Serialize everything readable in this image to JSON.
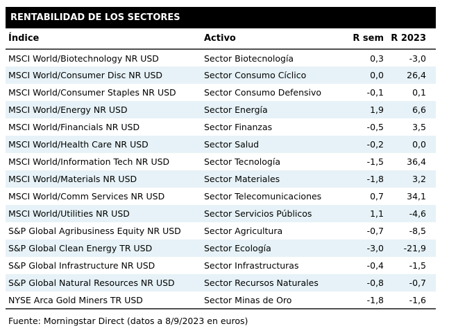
{
  "title": "RENTABILIDAD DE LOS SECTORES",
  "table": {
    "columns": [
      "Índice",
      "Activo",
      "R sem",
      "R 2023"
    ],
    "rows": [
      {
        "indice": "MSCI World/Biotechnology NR USD",
        "activo": "Sector Biotecnología",
        "r_sem": "0,3",
        "r_2023": "-3,0"
      },
      {
        "indice": "MSCI World/Consumer Disc NR USD",
        "activo": "Sector Consumo Cíclico",
        "r_sem": "0,0",
        "r_2023": "26,4"
      },
      {
        "indice": "MSCI World/Consumer Staples NR USD",
        "activo": "Sector Consumo Defensivo",
        "r_sem": "-0,1",
        "r_2023": "0,1"
      },
      {
        "indice": "MSCI World/Energy NR USD",
        "activo": "Sector Energía",
        "r_sem": "1,9",
        "r_2023": "6,6"
      },
      {
        "indice": "MSCI World/Financials NR USD",
        "activo": "Sector Finanzas",
        "r_sem": "-0,5",
        "r_2023": "3,5"
      },
      {
        "indice": "MSCI World/Health Care NR USD",
        "activo": "Sector Salud",
        "r_sem": "-0,2",
        "r_2023": "0,0"
      },
      {
        "indice": "MSCI World/Information Tech NR USD",
        "activo": "Sector Tecnología",
        "r_sem": "-1,5",
        "r_2023": "36,4"
      },
      {
        "indice": "MSCI World/Materials NR USD",
        "activo": "Sector Materiales",
        "r_sem": "-1,8",
        "r_2023": "3,2"
      },
      {
        "indice": "MSCI World/Comm Services NR USD",
        "activo": "Sector Telecomunicaciones",
        "r_sem": "0,7",
        "r_2023": "34,1"
      },
      {
        "indice": "MSCI World/Utilities NR USD",
        "activo": "Sector Servicios Públicos",
        "r_sem": "1,1",
        "r_2023": "-4,6"
      },
      {
        "indice": "S&P Global Agribusiness Equity NR USD",
        "activo": "Sector Agricultura",
        "r_sem": "-0,7",
        "r_2023": "-8,5"
      },
      {
        "indice": "S&P Global Clean Energy TR USD",
        "activo": "Sector Ecología",
        "r_sem": "-3,0",
        "r_2023": "-21,9"
      },
      {
        "indice": "S&P Global Infrastructure NR USD",
        "activo": "Sector Infrastructuras",
        "r_sem": "-0,4",
        "r_2023": "-1,5"
      },
      {
        "indice": "S&P Global Natural Resources NR USD",
        "activo": "Sector Recursos Naturales",
        "r_sem": "-0,8",
        "r_2023": "-0,7"
      },
      {
        "indice": "NYSE Arca Gold Miners TR USD",
        "activo": "Sector Minas de Oro",
        "r_sem": "-1,8",
        "r_2023": "-1,6"
      }
    ]
  },
  "footer": "Fuente: Morningstar Direct (datos a 8/9/2023 en euros)",
  "colors": {
    "title_bg": "#000000",
    "title_text": "#ffffff",
    "row_alt_bg": "#e6f2f7",
    "body_text": "#000000",
    "rule": "#4f4f4f"
  }
}
